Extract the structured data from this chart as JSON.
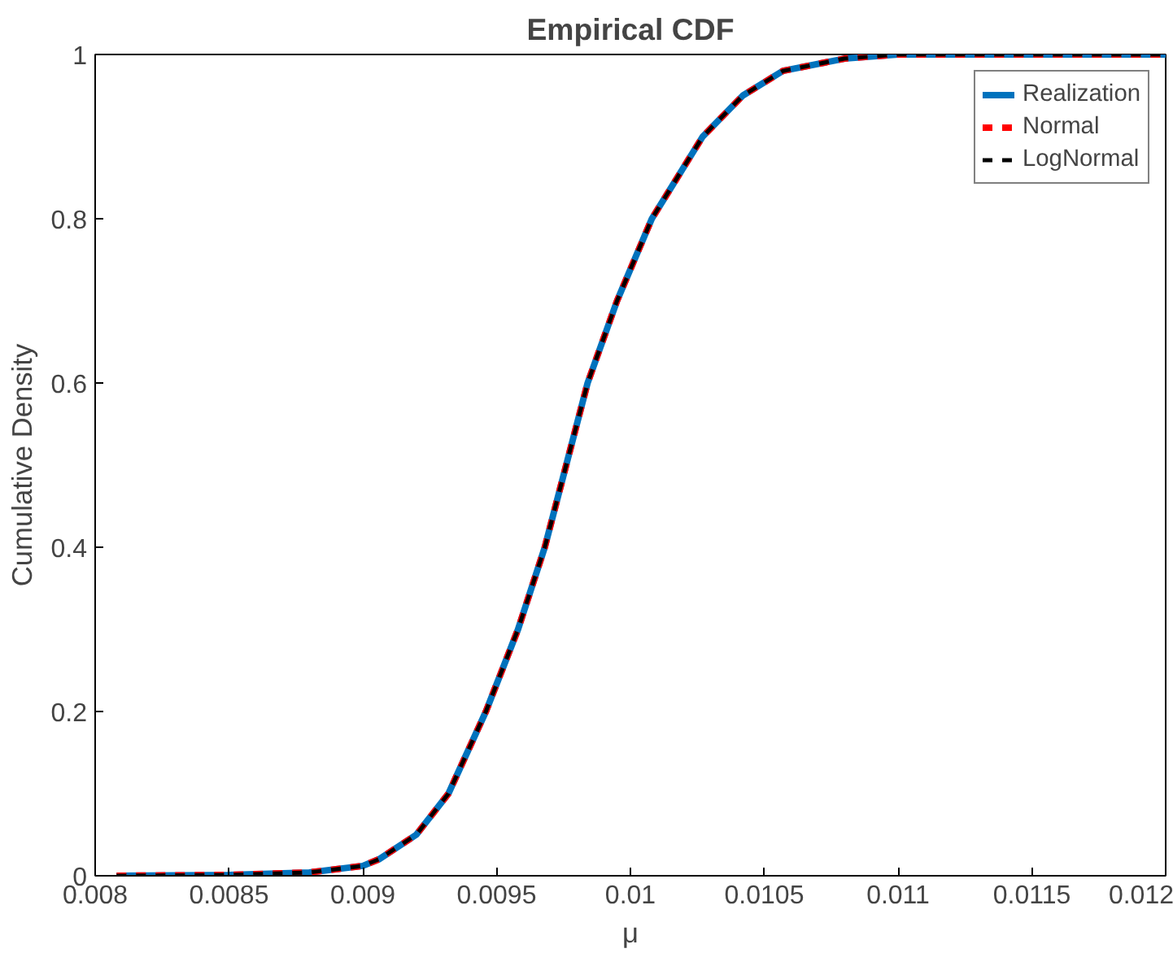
{
  "chart_data": {
    "type": "line",
    "title": "Empirical CDF",
    "xlabel": "μ",
    "ylabel": "Cumulative Density",
    "x": [
      0.00808,
      0.0085,
      0.0088,
      0.009,
      0.00906,
      0.0092,
      0.00932,
      0.00946,
      0.00958,
      0.00968,
      0.00976,
      0.00984,
      0.00995,
      0.01008,
      0.01027,
      0.01042,
      0.01057,
      0.0108,
      0.011,
      0.012
    ],
    "series": [
      {
        "name": "Realization",
        "color": "#0072bd",
        "line_style": "solid",
        "values": [
          0,
          0.001,
          0.004,
          0.012,
          0.02,
          0.05,
          0.1,
          0.2,
          0.3,
          0.4,
          0.5,
          0.6,
          0.7,
          0.8,
          0.9,
          0.95,
          0.98,
          0.995,
          1,
          1
        ]
      },
      {
        "name": "Normal",
        "color": "#ff0000",
        "line_style": "dashed",
        "values": [
          0,
          0.001,
          0.004,
          0.012,
          0.02,
          0.05,
          0.1,
          0.2,
          0.3,
          0.4,
          0.5,
          0.6,
          0.7,
          0.8,
          0.9,
          0.95,
          0.98,
          0.995,
          1,
          1
        ]
      },
      {
        "name": "LogNormal",
        "color": "#000000",
        "line_style": "dashed",
        "values": [
          0,
          0.001,
          0.004,
          0.012,
          0.02,
          0.05,
          0.1,
          0.2,
          0.3,
          0.4,
          0.5,
          0.6,
          0.7,
          0.8,
          0.9,
          0.95,
          0.98,
          0.995,
          1,
          1
        ]
      }
    ],
    "xlim": [
      0.008,
      0.012
    ],
    "xticks": [
      0.008,
      0.0085,
      0.009,
      0.0095,
      0.01,
      0.0105,
      0.011,
      0.0115,
      0.012
    ],
    "ylim": [
      0,
      1
    ],
    "yticks": [
      0,
      0.2,
      0.4,
      0.6,
      0.8,
      1
    ],
    "grid": false,
    "legend": "top right"
  }
}
